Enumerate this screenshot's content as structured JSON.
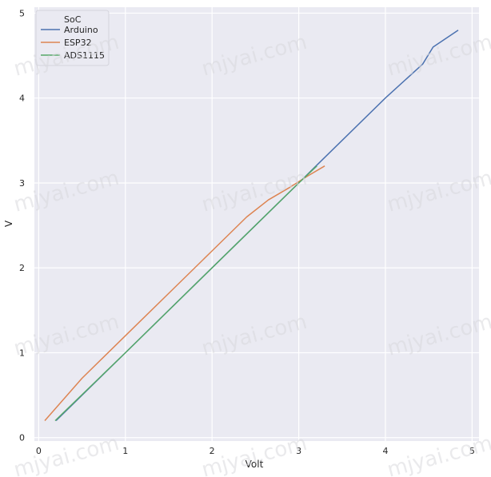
{
  "watermark_text": "mjyai.com",
  "chart_data": {
    "type": "line",
    "title": "",
    "xlabel": "Volt",
    "ylabel": "V",
    "xlim": [
      -0.05,
      5.08
    ],
    "ylim": [
      -0.04,
      5.07
    ],
    "xticks": [
      0,
      1,
      2,
      3,
      4,
      5
    ],
    "yticks": [
      0,
      1,
      2,
      3,
      4,
      5
    ],
    "grid": true,
    "background": "#eaeaf2",
    "legend": {
      "title": "SoC",
      "placement": "top-left"
    },
    "series": [
      {
        "name": "Arduino",
        "color": "#4c72b0",
        "x": [
          0.2,
          1.0,
          2.0,
          3.0,
          3.2,
          4.0,
          4.43,
          4.55,
          4.84
        ],
        "y": [
          0.2,
          1.0,
          2.0,
          3.0,
          3.2,
          4.0,
          4.4,
          4.6,
          4.8
        ]
      },
      {
        "name": "ESP32",
        "color": "#dd8452",
        "x": [
          0.07,
          0.5,
          1.0,
          1.5,
          2.0,
          2.4,
          2.65,
          2.9,
          3.1,
          3.3
        ],
        "y": [
          0.2,
          0.7,
          1.2,
          1.7,
          2.2,
          2.6,
          2.8,
          2.95,
          3.08,
          3.2
        ]
      },
      {
        "name": "ADS1115",
        "color": "#55a868",
        "x": [
          0.19,
          1.0,
          2.0,
          3.0,
          3.21
        ],
        "y": [
          0.2,
          1.0,
          2.0,
          3.0,
          3.2
        ]
      }
    ]
  }
}
